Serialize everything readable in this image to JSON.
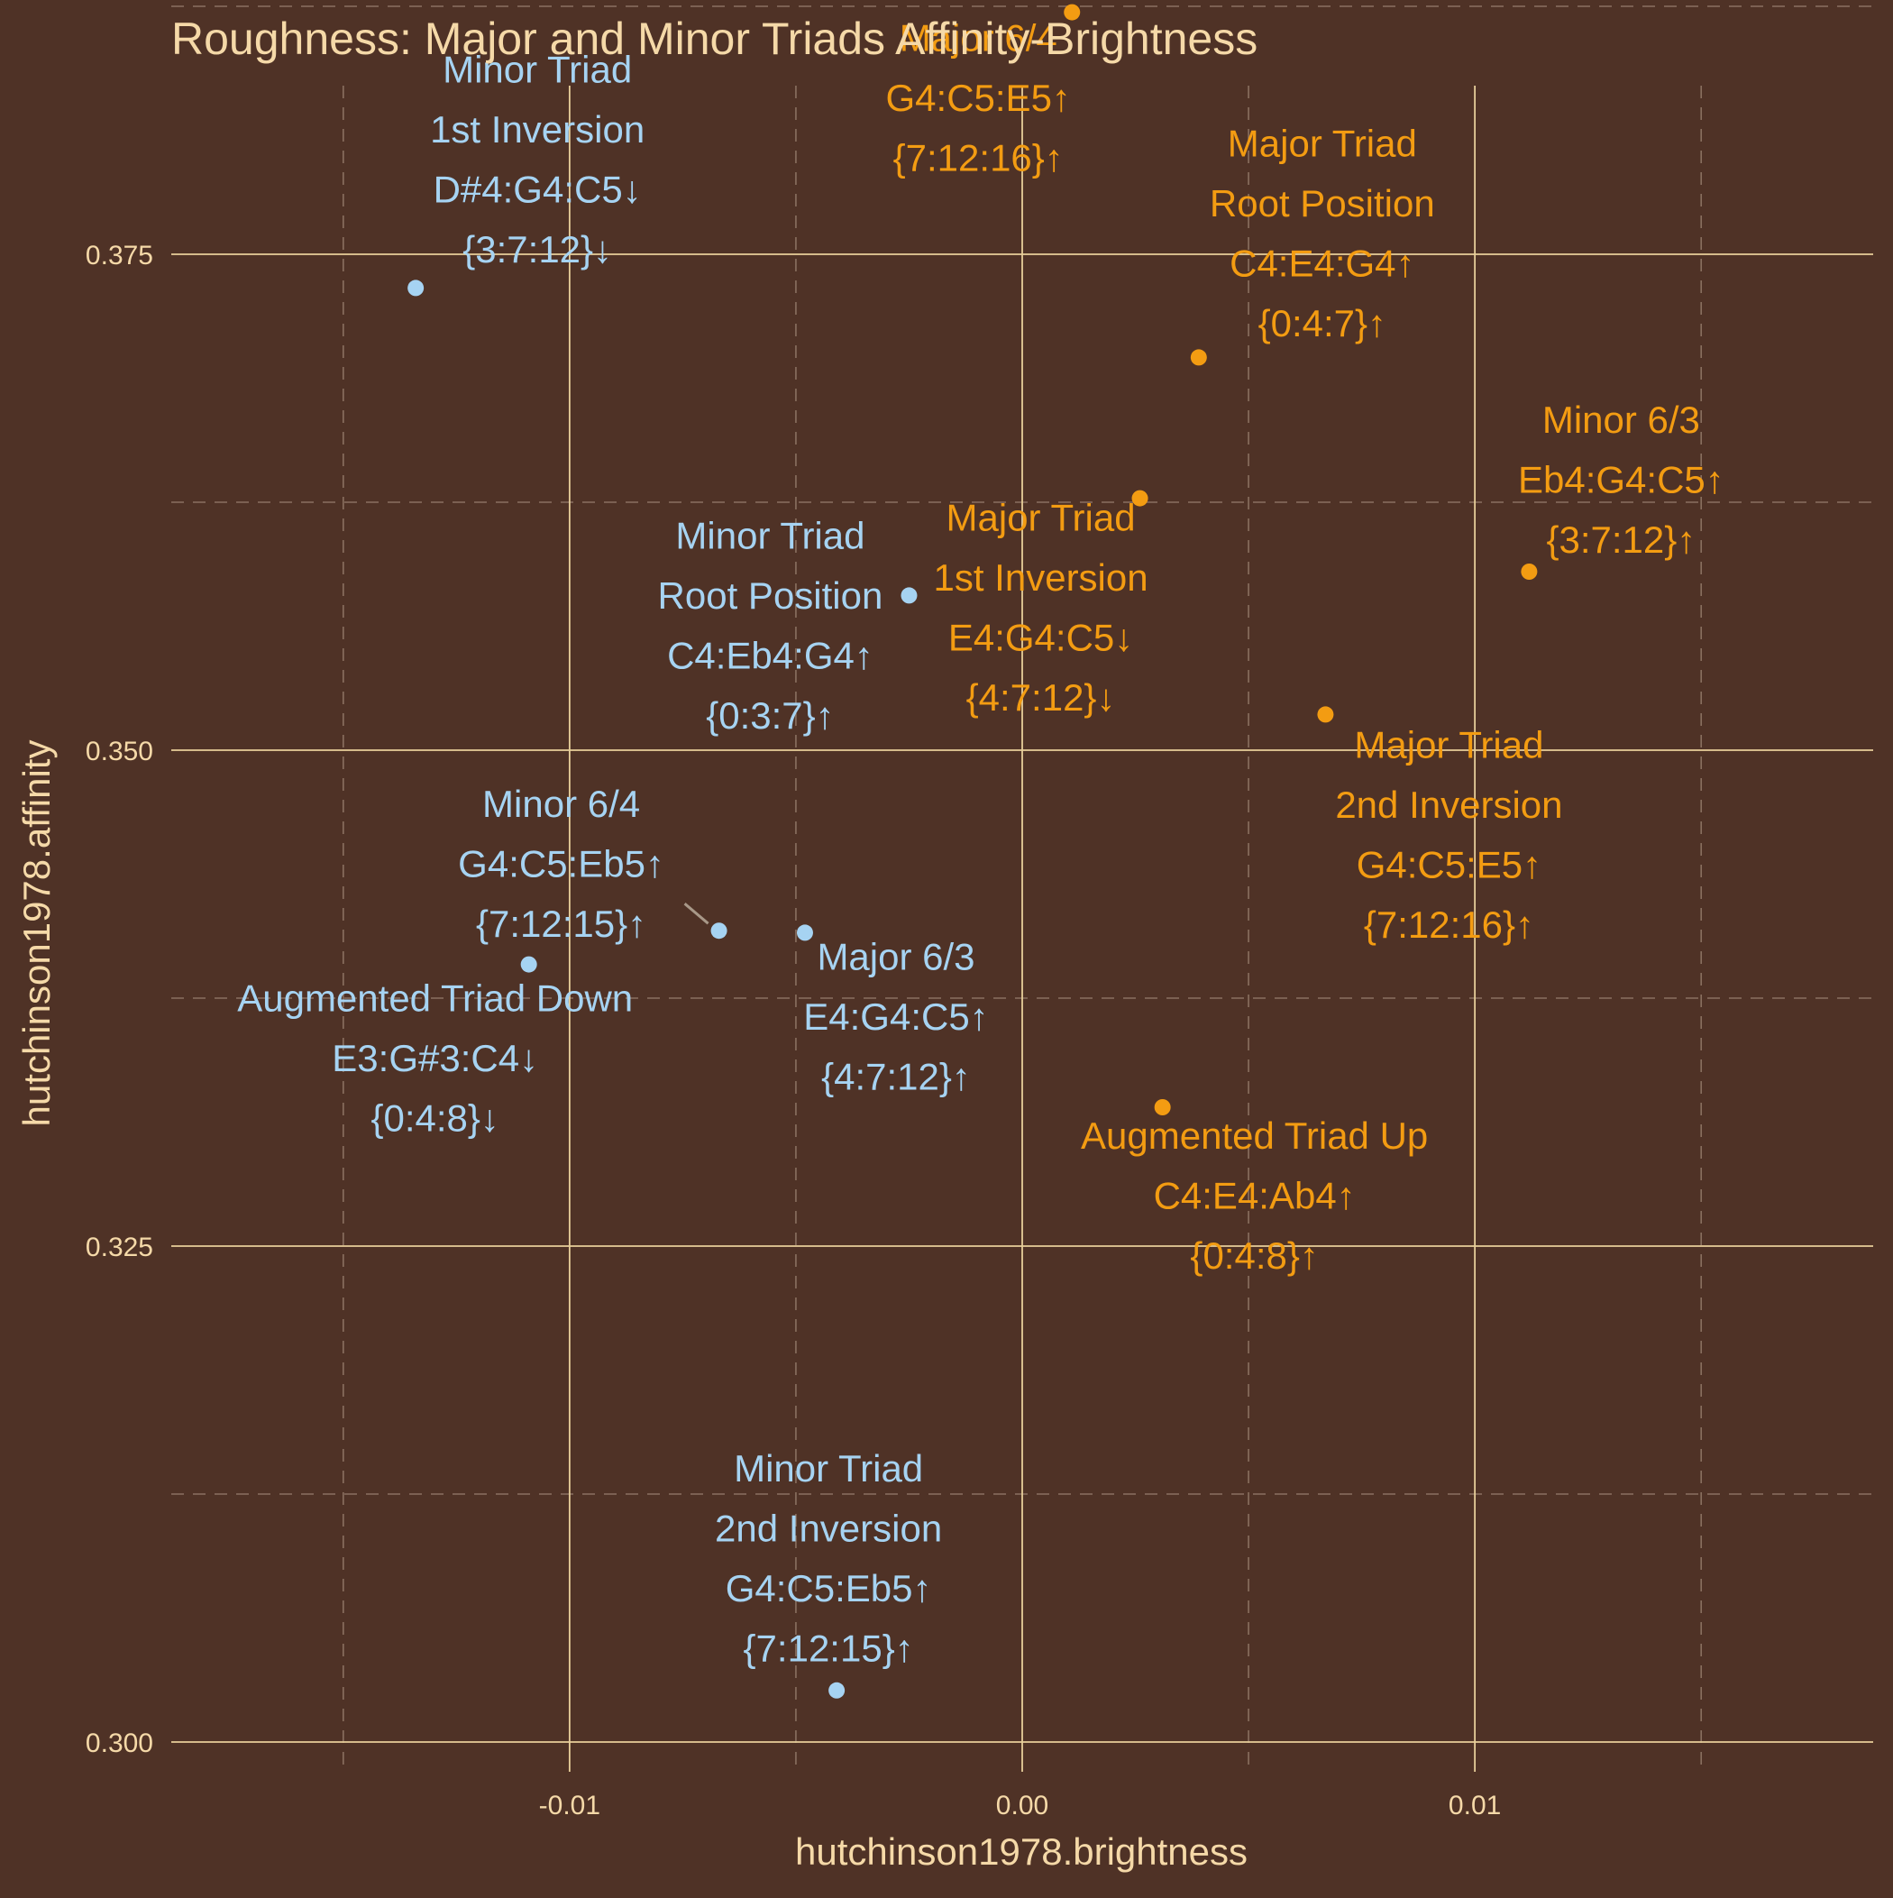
{
  "chart_data": {
    "type": "scatter",
    "title": "Roughness: Major and Minor Triads Affinity-Brightness",
    "xlabel": "hutchinson1978.brightness",
    "ylabel": "hutchinson1978.affinity",
    "xlim": [
      -0.0188,
      0.0188
    ],
    "ylim": [
      0.2985,
      0.3835
    ],
    "x_ticks": [
      -0.01,
      0.0,
      0.01
    ],
    "x_tick_labels": [
      "-0.01",
      "0.00",
      "0.01"
    ],
    "y_ticks": [
      0.3,
      0.325,
      0.35,
      0.375
    ],
    "y_tick_labels": [
      "0.300",
      "0.325",
      "0.350",
      "0.375"
    ],
    "grid": true,
    "legend": "none",
    "colors": {
      "background": "#4f3226",
      "grid_major": "#e8cf9a",
      "grid_minor": "#8a7060",
      "text": "#f5d9a8",
      "major": "#f39c12",
      "minor": "#a6d3f2",
      "leader": "#a89888"
    },
    "points": [
      {
        "x": -0.0134,
        "y": 0.3733,
        "color": "minor",
        "lines": [
          "Minor Triad",
          "1st Inversion",
          "D#4:G4:C5↓",
          "{3:7:12}↓"
        ]
      },
      {
        "x": 0.0011,
        "y": 0.3872,
        "color": "major",
        "lines": [
          "Major 6/4",
          "G4:C5:E5↑",
          "{7:12:16}↑"
        ]
      },
      {
        "x": 0.0039,
        "y": 0.3698,
        "color": "major",
        "lines": [
          "Major Triad",
          "Root Position",
          "C4:E4:G4↑",
          "{0:4:7}↑"
        ]
      },
      {
        "x": 0.0026,
        "y": 0.3627,
        "color": "major",
        "lines": [
          "Major Triad",
          "1st Inversion",
          "E4:G4:C5↓",
          "{4:7:12}↓"
        ]
      },
      {
        "x": 0.0112,
        "y": 0.359,
        "color": "major",
        "lines": [
          "Minor 6/3",
          "Eb4:G4:C5↑",
          "{3:7:12}↑"
        ]
      },
      {
        "x": -0.0025,
        "y": 0.3578,
        "color": "minor",
        "lines": [
          "Minor Triad",
          "Root Position",
          "C4:Eb4:G4↑",
          "{0:3:7}↑"
        ]
      },
      {
        "x": 0.0067,
        "y": 0.3518,
        "color": "major",
        "lines": [
          "Major Triad",
          "2nd Inversion",
          "G4:C5:E5↑",
          "{7:12:16}↑"
        ]
      },
      {
        "x": -0.0067,
        "y": 0.3409,
        "color": "minor",
        "lines": [
          "Minor 6/4",
          "G4:C5:Eb5↑",
          "{7:12:15}↑"
        ]
      },
      {
        "x": -0.0048,
        "y": 0.3408,
        "color": "minor",
        "lines": [
          "Major 6/3",
          "E4:G4:C5↑",
          "{4:7:12}↑"
        ]
      },
      {
        "x": -0.0109,
        "y": 0.3392,
        "color": "minor",
        "lines": [
          "Augmented Triad Down",
          "E3:G#3:C4↓",
          "{0:4:8}↓"
        ]
      },
      {
        "x": 0.0031,
        "y": 0.332,
        "color": "major",
        "lines": [
          "Augmented Triad Up",
          "C4:E4:Ab4↑",
          "{0:4:8}↑"
        ]
      },
      {
        "x": -0.0041,
        "y": 0.3026,
        "color": "minor",
        "lines": [
          "Minor Triad",
          "2nd Inversion",
          "G4:C5:Eb5↑",
          "{7:12:15}↑"
        ]
      }
    ]
  }
}
